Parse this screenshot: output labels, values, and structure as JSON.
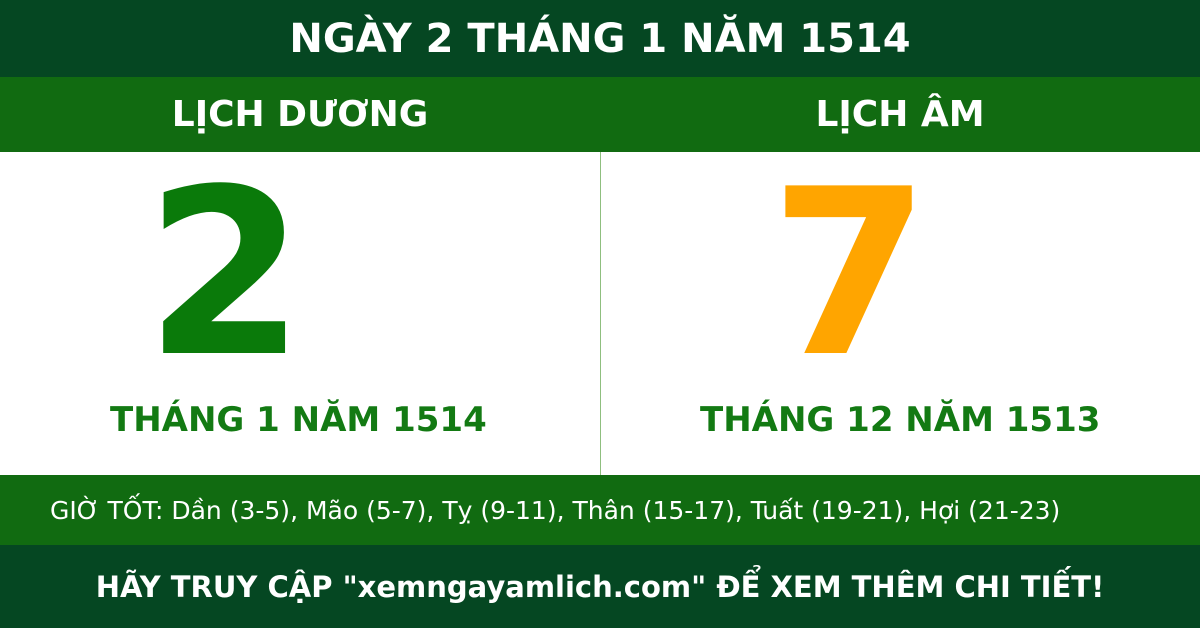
{
  "title": "NGÀY 2 THÁNG 1 NĂM 1514",
  "solar": {
    "heading": "LỊCH DƯƠNG",
    "day": "2",
    "month_year": "THÁNG 1 NĂM 1514",
    "color": "#0a7a0a"
  },
  "lunar": {
    "heading": "LỊCH ÂM",
    "day": "7",
    "month_year": "THÁNG 12 NĂM 1513",
    "color": "#ffa500"
  },
  "good_hours": "GIỜ TỐT: Dần (3-5), Mão (5-7), Tỵ (9-11), Thân (15-17), Tuất (19-21), Hợi (21-23)",
  "footer": "HÃY TRUY CẬP \"xemngayamlich.com\" ĐỂ XEM THÊM CHI TIẾT!"
}
